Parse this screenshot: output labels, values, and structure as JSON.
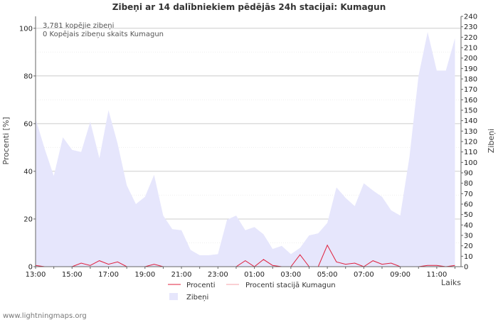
{
  "chart_data": {
    "type": "area",
    "title": "Zibeņi ar 14 dalībniekiem pēdējās 24h stacijai: Kumagun",
    "ylabel_left": "Procenti   [%]",
    "ylabel_right": "Zibeņi",
    "xlabel": "Laiks",
    "ylim_left": [
      0,
      105
    ],
    "ylim_right": [
      0,
      240
    ],
    "left_ticks": [
      0,
      20,
      40,
      60,
      80,
      100
    ],
    "right_ticks": [
      0,
      10,
      20,
      30,
      40,
      50,
      60,
      70,
      80,
      90,
      100,
      110,
      120,
      130,
      140,
      150,
      160,
      170,
      180,
      190,
      200,
      210,
      220,
      230,
      240
    ],
    "x_tick_labels": [
      "13:00",
      "15:00",
      "17:00",
      "19:00",
      "21:00",
      "23:00",
      "01:00",
      "03:00",
      "05:00",
      "07:00",
      "09:00",
      "11:00"
    ],
    "x_tick_hours": [
      0,
      2,
      4,
      6,
      8,
      10,
      12,
      14,
      16,
      18,
      20,
      22
    ],
    "annotations": [
      "3,781 kopējie zibeņi",
      "0 Kopējais zibeņu skaits Kumagun"
    ],
    "legend": {
      "procenti": "Procenti",
      "procenti_station": "Procenti stacijā Kumagun",
      "zibeni": "Zibeņi"
    },
    "colors": {
      "area_fill": "#e6e6fc",
      "procenti_line": "#e0203c",
      "procenti_station_line": "#f4a0aa",
      "grid_major": "#cccccc"
    },
    "x_hours": [
      0,
      0.5,
      1,
      1.5,
      2,
      2.5,
      3,
      3.5,
      4,
      4.5,
      5,
      5.5,
      6,
      6.5,
      7,
      7.5,
      8,
      8.5,
      9,
      9.5,
      10,
      10.5,
      11,
      11.5,
      12,
      12.5,
      13,
      13.5,
      14,
      14.5,
      15,
      15.5,
      16,
      16.5,
      17,
      17.5,
      18,
      18.5,
      19,
      19.5,
      20,
      20.5,
      21,
      21.5,
      22,
      22.5,
      23
    ],
    "series": [
      {
        "name": "Zibeņi",
        "axis": "right",
        "values": [
          142,
          113,
          87,
          124,
          112,
          110,
          139,
          104,
          150,
          118,
          78,
          60,
          67,
          88,
          49,
          36,
          35,
          16,
          11,
          11,
          12,
          45,
          49,
          35,
          38,
          31,
          17,
          20,
          12,
          18,
          30,
          32,
          42,
          76,
          66,
          58,
          80,
          73,
          67,
          54,
          49,
          105,
          183,
          225,
          188,
          188,
          219
        ]
      },
      {
        "name": "Procenti",
        "axis": "left",
        "values": [
          0.5,
          0,
          0,
          0,
          0,
          1.5,
          0.5,
          2.5,
          1,
          2,
          0,
          0,
          0,
          1,
          0,
          0,
          0,
          0,
          0,
          0,
          0,
          0,
          0,
          2.5,
          0,
          3,
          0.5,
          0,
          0,
          5,
          0,
          0,
          9,
          2,
          1,
          1.5,
          0,
          2.5,
          1,
          1.5,
          0,
          0,
          0,
          0.5,
          0.5,
          0,
          0.5
        ]
      },
      {
        "name": "Procenti stacijā Kumagun",
        "axis": "left",
        "values": [
          0,
          0,
          0,
          0,
          0,
          0,
          0,
          0,
          0,
          0,
          0,
          0,
          0,
          0,
          0,
          0,
          0,
          0,
          0,
          0,
          0,
          0,
          0,
          0,
          0,
          0,
          0,
          0,
          0,
          0,
          0,
          0,
          0,
          0,
          0,
          0,
          0,
          0,
          0,
          0,
          0,
          0,
          0,
          0,
          0,
          0,
          0
        ]
      }
    ]
  },
  "footer": "www.lightningmaps.org"
}
